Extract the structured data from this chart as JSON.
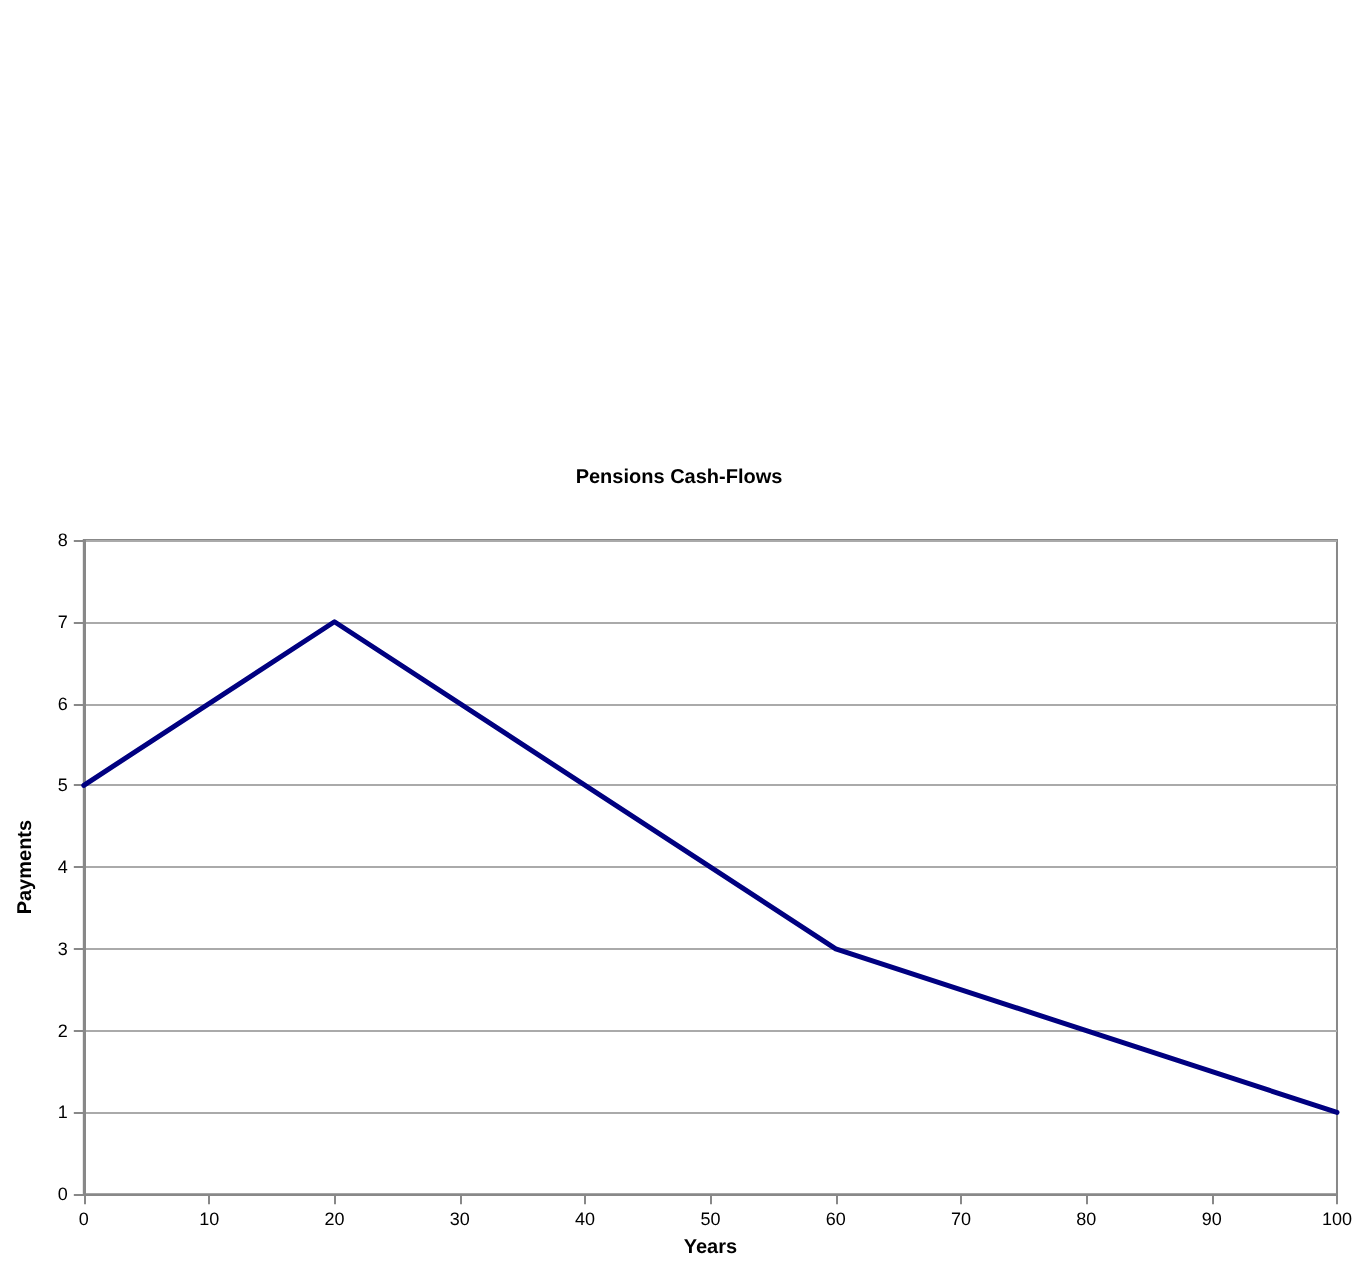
{
  "chart_data": {
    "type": "line",
    "title": "Pensions Cash-Flows",
    "xlabel": "Years",
    "ylabel": "Payments",
    "x": [
      0,
      20,
      60,
      100
    ],
    "series": [
      {
        "color": "#000080",
        "values": [
          5,
          7,
          3,
          1
        ]
      }
    ],
    "xlim": [
      0,
      100
    ],
    "xticks": [
      0,
      10,
      20,
      30,
      40,
      50,
      60,
      70,
      80,
      90,
      100
    ],
    "ylim": [
      0,
      8
    ],
    "yticks": [
      0,
      1,
      2,
      3,
      4,
      5,
      6,
      7,
      8
    ],
    "grid": "y",
    "marker": "none",
    "line_style": "solid"
  }
}
